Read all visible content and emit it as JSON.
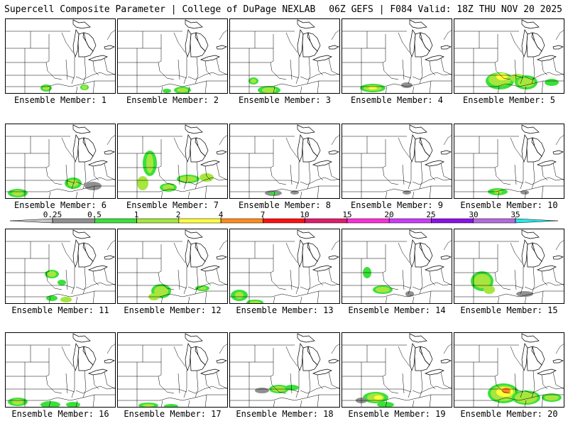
{
  "header": {
    "left": "Supercell Composite Parameter | College of DuPage NEXLAB",
    "right": "06Z GEFS | F084 Valid: 18Z THU NOV 20 2025"
  },
  "colorbar": {
    "labels": [
      "0.25",
      "0.5",
      "1",
      "2",
      "4",
      "7",
      "10",
      "15",
      "20",
      "25",
      "30",
      "35"
    ],
    "colors": [
      "#c4c4c4",
      "#909090",
      "#3ae03a",
      "#a6e63e",
      "#ffff3c",
      "#ff8c1a",
      "#ff1010",
      "#e01c6c",
      "#ff2cd9",
      "#cc3aff",
      "#8c10e8",
      "#b46ae0",
      "#28e8e8"
    ]
  },
  "members": [
    {
      "label": "Ensemble Member: 1"
    },
    {
      "label": "Ensemble Member: 2"
    },
    {
      "label": "Ensemble Member: 3"
    },
    {
      "label": "Ensemble Member: 4"
    },
    {
      "label": "Ensemble Member: 5"
    },
    {
      "label": "Ensemble Member: 6"
    },
    {
      "label": "Ensemble Member: 7"
    },
    {
      "label": "Ensemble Member: 8"
    },
    {
      "label": "Ensemble Member: 9"
    },
    {
      "label": "Ensemble Member: 10"
    },
    {
      "label": "Ensemble Member: 11"
    },
    {
      "label": "Ensemble Member: 12"
    },
    {
      "label": "Ensemble Member: 13"
    },
    {
      "label": "Ensemble Member: 14"
    },
    {
      "label": "Ensemble Member: 15"
    },
    {
      "label": "Ensemble Member: 16"
    },
    {
      "label": "Ensemble Member: 17"
    },
    {
      "label": "Ensemble Member: 18"
    },
    {
      "label": "Ensemble Member: 19"
    },
    {
      "label": "Ensemble Member: 20"
    }
  ]
}
